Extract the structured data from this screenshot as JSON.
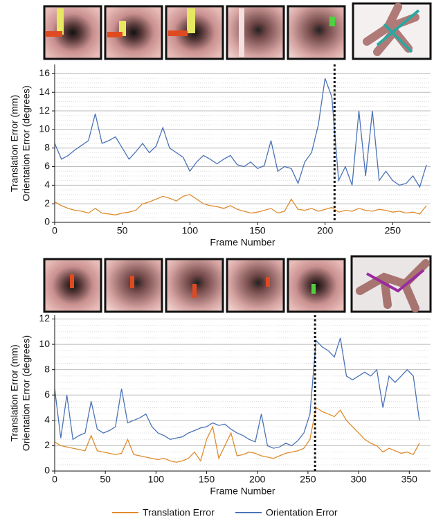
{
  "chart_data": [
    {
      "type": "line",
      "xlabel": "Frame Number",
      "ylabel": [
        "Translation Error (mm)",
        "Orientation Error (degrees)"
      ],
      "xlim": [
        0,
        278
      ],
      "xticks": [
        0,
        50,
        100,
        150,
        200,
        250
      ],
      "ylim": [
        0,
        17
      ],
      "yticks": [
        0,
        2,
        4,
        6,
        8,
        10,
        12,
        14,
        16
      ],
      "grid": true,
      "vline": 207,
      "x": [
        0,
        5,
        10,
        15,
        20,
        25,
        30,
        35,
        40,
        45,
        50,
        55,
        60,
        65,
        70,
        75,
        80,
        85,
        90,
        95,
        100,
        105,
        110,
        115,
        120,
        125,
        130,
        135,
        140,
        145,
        150,
        155,
        160,
        165,
        170,
        175,
        180,
        185,
        190,
        195,
        200,
        205,
        210,
        215,
        220,
        225,
        230,
        235,
        240,
        245,
        250,
        255,
        260,
        265,
        270,
        275
      ],
      "series": [
        {
          "name": "Translation Error",
          "color": "#e08a2c",
          "values": [
            2.2,
            1.8,
            1.5,
            1.3,
            1.2,
            1.0,
            1.5,
            1.0,
            0.9,
            0.8,
            1.0,
            1.1,
            1.3,
            2.0,
            2.2,
            2.5,
            2.8,
            2.6,
            2.3,
            2.8,
            3.0,
            2.5,
            2.0,
            1.8,
            1.7,
            1.5,
            1.8,
            1.4,
            1.2,
            1.0,
            1.1,
            1.3,
            1.5,
            1.0,
            1.2,
            2.5,
            1.4,
            1.3,
            1.5,
            1.2,
            1.4,
            1.6,
            1.1,
            1.3,
            1.2,
            1.5,
            1.3,
            1.2,
            1.4,
            1.3,
            1.1,
            1.2,
            1.0,
            1.1,
            0.9,
            1.8
          ]
        },
        {
          "name": "Orientation Error",
          "color": "#4a72b8",
          "values": [
            8.5,
            6.8,
            7.2,
            7.8,
            8.3,
            8.8,
            11.7,
            8.5,
            8.8,
            9.2,
            8.0,
            6.8,
            7.6,
            8.5,
            7.5,
            8.2,
            10.2,
            8.0,
            7.5,
            7.0,
            5.5,
            6.5,
            7.2,
            6.8,
            6.3,
            6.8,
            7.2,
            6.2,
            6.0,
            6.5,
            5.8,
            6.1,
            8.8,
            5.5,
            6.0,
            5.8,
            4.2,
            6.5,
            7.5,
            10.5,
            15.5,
            13.5,
            4.5,
            6.0,
            4.0,
            12.0,
            5.0,
            12.0,
            4.5,
            5.5,
            4.5,
            4.0,
            4.2,
            5.0,
            3.8,
            6.2
          ]
        }
      ]
    },
    {
      "type": "line",
      "xlabel": "Frame Number",
      "ylabel": [
        "Translation Error (mm)",
        "Orientation Error (degrees)"
      ],
      "xlim": [
        0,
        371
      ],
      "xticks": [
        0,
        50,
        100,
        150,
        200,
        250,
        300,
        350
      ],
      "ylim": [
        0,
        12.3
      ],
      "yticks": [
        0,
        2,
        4,
        6,
        8,
        10,
        12
      ],
      "grid": true,
      "vline": 257,
      "x": [
        0,
        6,
        12,
        18,
        24,
        30,
        36,
        42,
        48,
        54,
        60,
        66,
        72,
        78,
        84,
        90,
        96,
        102,
        108,
        114,
        120,
        126,
        132,
        138,
        144,
        150,
        156,
        162,
        168,
        174,
        180,
        186,
        192,
        198,
        204,
        210,
        216,
        222,
        228,
        234,
        240,
        246,
        252,
        258,
        264,
        270,
        276,
        282,
        288,
        294,
        300,
        306,
        312,
        318,
        324,
        330,
        336,
        342,
        348,
        354,
        360
      ],
      "series": [
        {
          "name": "Translation Error",
          "color": "#e08a2c",
          "values": [
            2.3,
            2.0,
            1.9,
            1.8,
            1.7,
            1.6,
            2.8,
            1.6,
            1.5,
            1.4,
            1.3,
            1.4,
            2.5,
            1.3,
            1.2,
            1.1,
            1.0,
            0.9,
            1.0,
            0.8,
            0.7,
            0.8,
            1.0,
            1.5,
            0.8,
            2.5,
            3.5,
            1.0,
            2.0,
            3.0,
            1.2,
            1.3,
            1.5,
            1.4,
            1.2,
            1.1,
            1.0,
            1.2,
            1.4,
            1.5,
            1.6,
            1.8,
            2.5,
            5.0,
            4.7,
            4.5,
            4.3,
            4.8,
            4.0,
            3.5,
            3.0,
            2.5,
            2.2,
            2.0,
            1.5,
            1.8,
            1.6,
            1.4,
            1.5,
            1.3,
            2.2
          ]
        },
        {
          "name": "Orientation Error",
          "color": "#4a72b8",
          "values": [
            6.5,
            2.6,
            6.0,
            2.5,
            2.8,
            3.0,
            5.5,
            3.3,
            3.0,
            3.2,
            3.5,
            6.5,
            3.8,
            4.0,
            4.2,
            4.5,
            3.5,
            3.0,
            2.8,
            2.5,
            2.6,
            2.7,
            3.0,
            3.2,
            3.4,
            3.5,
            3.8,
            3.6,
            3.7,
            3.3,
            3.0,
            2.8,
            2.5,
            2.3,
            4.5,
            2.0,
            1.8,
            1.9,
            2.2,
            2.0,
            2.4,
            3.0,
            4.5,
            10.3,
            9.8,
            9.5,
            9.0,
            10.5,
            7.5,
            7.2,
            7.5,
            7.8,
            7.5,
            8.0,
            5.0,
            7.5,
            7.0,
            7.5,
            8.0,
            7.5,
            4.0
          ]
        }
      ]
    }
  ]
}
